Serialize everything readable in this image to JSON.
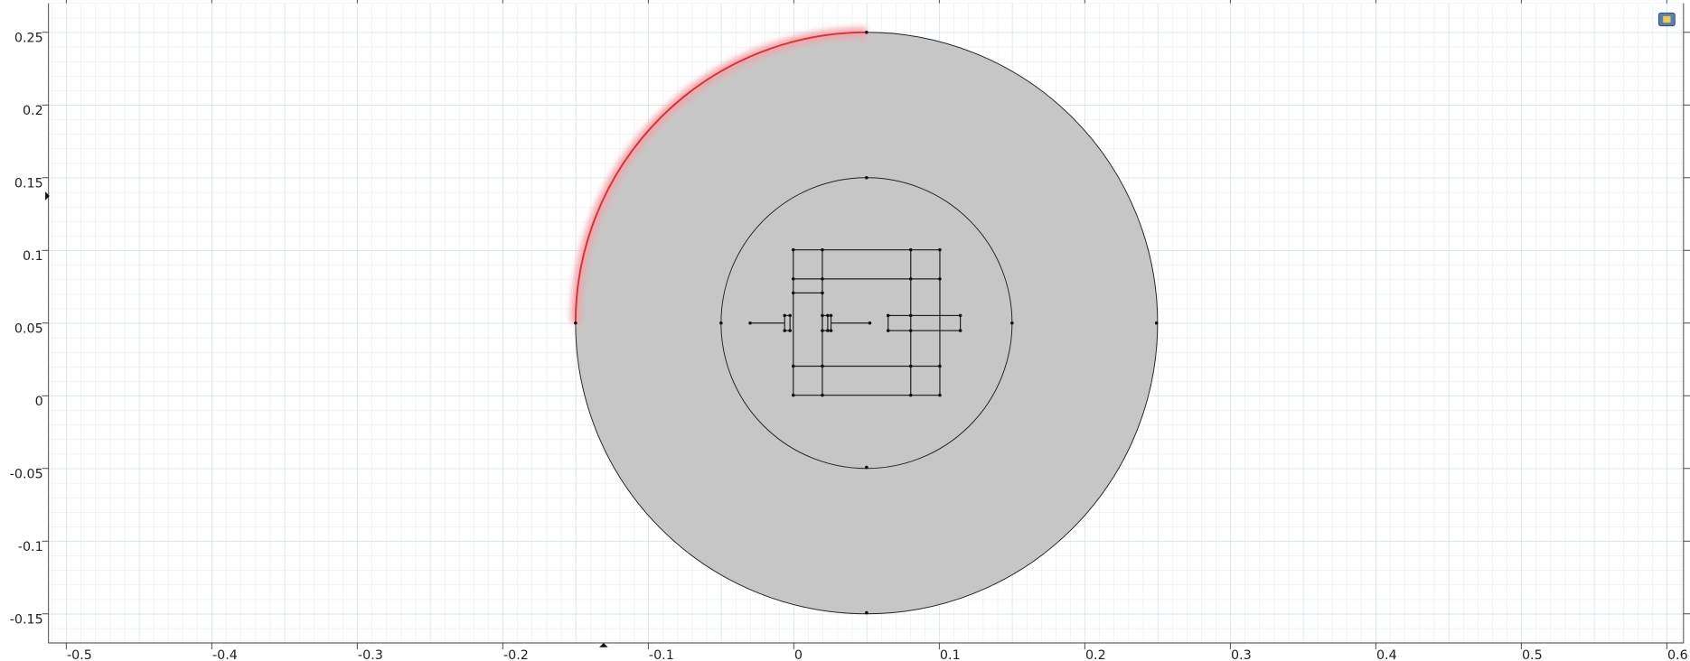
{
  "x_axis": {
    "ticks": [
      -0.5,
      -0.4,
      -0.3,
      -0.2,
      -0.1,
      0,
      0.1,
      0.2,
      0.3,
      0.4,
      0.5,
      0.6
    ]
  },
  "y_axis": {
    "ticks": [
      -0.15,
      -0.1,
      -0.05,
      0,
      0.05,
      0.1,
      0.15,
      0.2,
      0.25
    ]
  }
}
